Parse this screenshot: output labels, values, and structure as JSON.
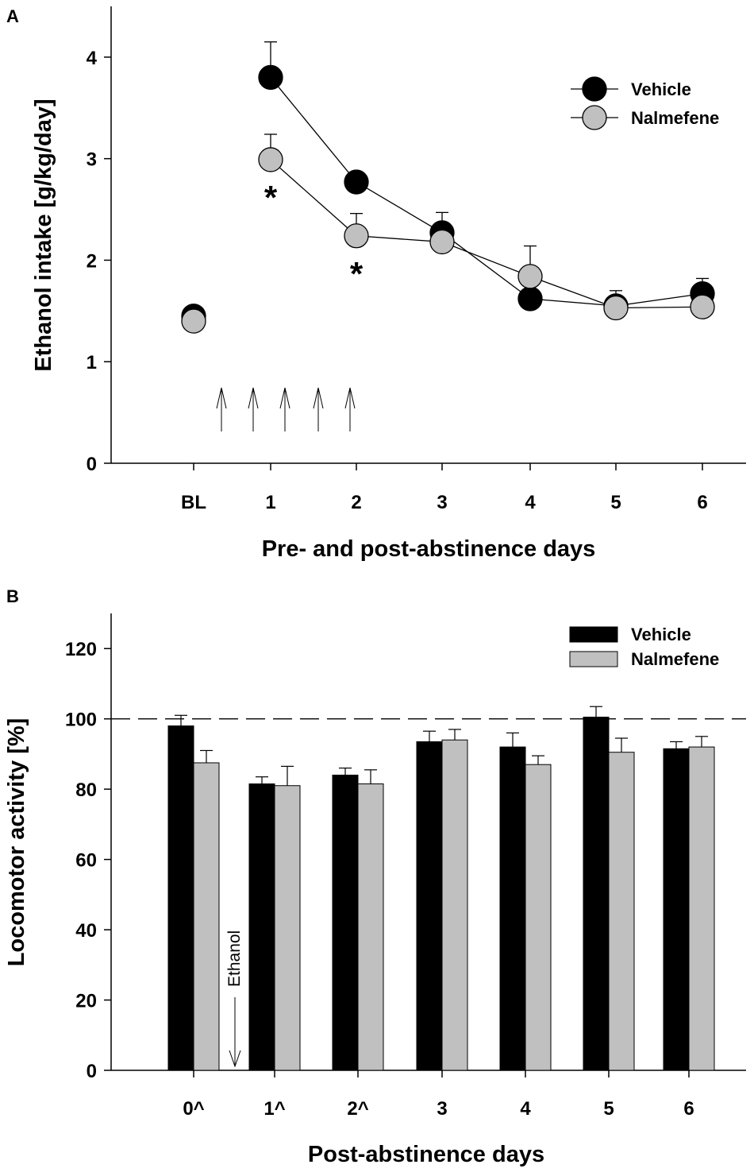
{
  "chart_data": [
    {
      "panel": "A",
      "type": "line",
      "categories": [
        "BL",
        "1",
        "2",
        "3",
        "4",
        "5",
        "6"
      ],
      "series": [
        {
          "name": "Vehicle",
          "color": "#000000",
          "values": [
            1.45,
            3.8,
            2.77,
            2.27,
            1.62,
            1.55,
            1.67
          ],
          "errors": [
            0.08,
            0.35,
            0.07,
            0.2,
            0.0,
            0.15,
            0.15
          ]
        },
        {
          "name": "Nalmefene",
          "color": "#c0c0c0",
          "values": [
            1.4,
            2.99,
            2.24,
            2.18,
            1.84,
            1.53,
            1.54
          ],
          "errors": [
            0.0,
            0.25,
            0.22,
            0.0,
            0.3,
            0.0,
            0.0
          ]
        }
      ],
      "yticks": [
        "0",
        "1",
        "2",
        "3",
        "4"
      ],
      "ylim": [
        0,
        4.5
      ],
      "ylabel": "Ethanol intake [g/kg/day]",
      "xlabel": "Pre- and post-abstinence days",
      "annotations": [
        {
          "text": "*",
          "category": "1"
        },
        {
          "text": "*",
          "category": "2"
        }
      ],
      "arrow_count": 5,
      "legend_position": "top-right"
    },
    {
      "panel": "B",
      "type": "bar",
      "categories": [
        "0^",
        "1^",
        "2^",
        "3",
        "4",
        "5",
        "6"
      ],
      "series": [
        {
          "name": "Vehicle",
          "color": "#000000",
          "values": [
            98,
            81.5,
            84,
            93.5,
            92,
            100.5,
            91.5
          ],
          "errors": [
            3,
            2,
            2,
            3,
            4,
            3,
            2
          ]
        },
        {
          "name": "Nalmefene",
          "color": "#c0c0c0",
          "values": [
            87.5,
            81,
            81.5,
            94,
            87,
            90.5,
            92
          ],
          "errors": [
            3.5,
            5.5,
            4,
            3,
            2.5,
            4,
            3
          ]
        }
      ],
      "yticks": [
        "0",
        "20",
        "40",
        "60",
        "80",
        "100",
        "120"
      ],
      "ylim": [
        0,
        130
      ],
      "reference_line": 100,
      "ylabel": "Locomotor activity [%]",
      "xlabel": "Post-abstinence days",
      "annotation": "Ethanol",
      "legend_position": "top-right"
    }
  ]
}
